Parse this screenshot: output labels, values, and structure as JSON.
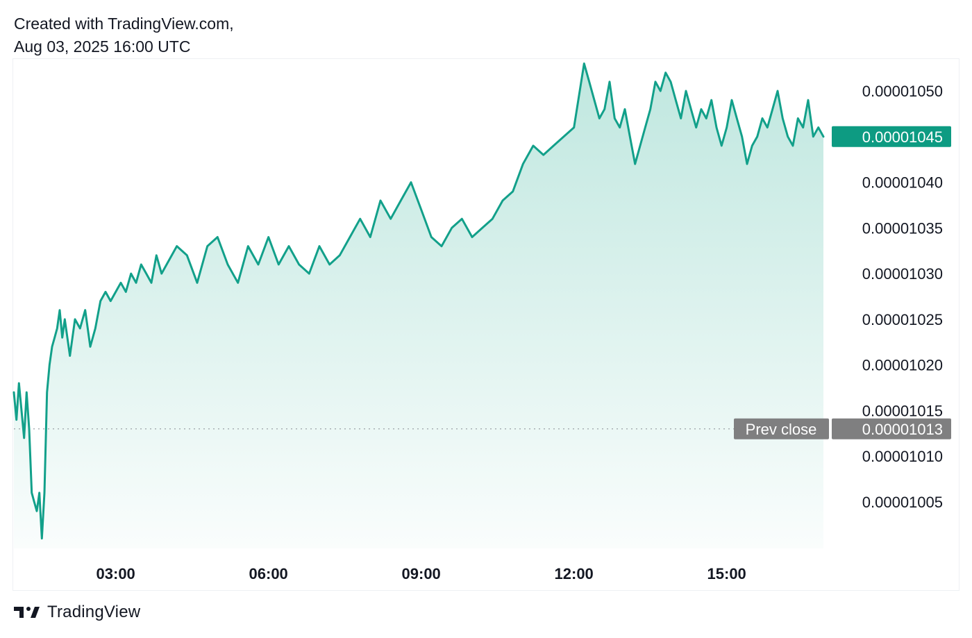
{
  "header": {
    "line1": "Created with TradingView.com,",
    "line2": "Aug 03, 2025 16:00 UTC"
  },
  "footer": {
    "brand": "TradingView",
    "logo_icon": "tradingview-logo-icon"
  },
  "colors": {
    "line": "#12a08a",
    "fill_top": "#bfe7df",
    "label_bg": "#0d9b82",
    "prev_close_bg": "#7f7f80",
    "text": "#131722",
    "dotted": "#9aa0a6"
  },
  "chart_data": {
    "type": "area",
    "xlabel": "",
    "ylabel": "",
    "x_ticks": [
      "03:00",
      "06:00",
      "09:00",
      "12:00",
      "15:00"
    ],
    "y_ticks": [
      "0.00001050",
      "0.00001045",
      "0.00001040",
      "0.00001035",
      "0.00001030",
      "0.00001025",
      "0.00001020",
      "0.00001015",
      "0.00001010",
      "0.00001005"
    ],
    "ylim": [
      1e-05,
      1.053e-05
    ],
    "last_price": 1.045e-05,
    "last_price_label": "0.00001045",
    "prev_close": 1.013e-05,
    "prev_close_value_label": "0.00001013",
    "prev_close_label": "Prev close",
    "x_unit": "hours after 00:00 UTC, Aug 03, 2025",
    "series": [
      {
        "x": [
          1.0,
          1.05,
          1.1,
          1.15,
          1.2,
          1.25,
          1.3,
          1.35,
          1.4,
          1.45,
          1.5,
          1.55,
          1.6,
          1.65,
          1.7,
          1.75,
          1.8,
          1.85,
          1.9,
          1.95,
          2.0,
          2.1,
          2.2,
          2.3,
          2.4,
          2.5,
          2.6,
          2.7,
          2.8,
          2.9,
          3.0,
          3.1,
          3.2,
          3.3,
          3.4,
          3.5,
          3.6,
          3.7,
          3.8,
          3.9,
          4.0,
          4.2,
          4.4,
          4.6,
          4.8,
          5.0,
          5.2,
          5.4,
          5.6,
          5.8,
          6.0,
          6.2,
          6.4,
          6.6,
          6.8,
          7.0,
          7.2,
          7.4,
          7.6,
          7.8,
          8.0,
          8.2,
          8.4,
          8.6,
          8.8,
          9.0,
          9.2,
          9.4,
          9.6,
          9.8,
          10.0,
          10.2,
          10.4,
          10.6,
          10.8,
          11.0,
          11.2,
          11.4,
          11.6,
          11.8,
          12.0,
          12.2,
          12.3,
          12.4,
          12.5,
          12.6,
          12.7,
          12.8,
          12.9,
          13.0,
          13.1,
          13.2,
          13.3,
          13.4,
          13.5,
          13.6,
          13.7,
          13.8,
          13.9,
          14.0,
          14.1,
          14.2,
          14.3,
          14.4,
          14.5,
          14.6,
          14.7,
          14.8,
          14.9,
          15.0,
          15.1,
          15.2,
          15.3,
          15.4,
          15.5,
          15.6,
          15.7,
          15.8,
          15.9,
          16.0,
          16.1,
          16.2,
          16.3,
          16.4,
          16.5,
          16.6,
          16.7,
          16.8,
          16.9
        ],
        "y": [
          1.017e-05,
          1.014e-05,
          1.018e-05,
          1.015e-05,
          1.012e-05,
          1.017e-05,
          1.013e-05,
          1.006e-05,
          1.005e-05,
          1.004e-05,
          1.006e-05,
          1.001e-05,
          1.006e-05,
          1.017e-05,
          1.02e-05,
          1.022e-05,
          1.023e-05,
          1.024e-05,
          1.026e-05,
          1.023e-05,
          1.025e-05,
          1.021e-05,
          1.025e-05,
          1.024e-05,
          1.026e-05,
          1.022e-05,
          1.024e-05,
          1.027e-05,
          1.028e-05,
          1.027e-05,
          1.028e-05,
          1.029e-05,
          1.028e-05,
          1.03e-05,
          1.029e-05,
          1.031e-05,
          1.03e-05,
          1.029e-05,
          1.032e-05,
          1.03e-05,
          1.031e-05,
          1.033e-05,
          1.032e-05,
          1.029e-05,
          1.033e-05,
          1.034e-05,
          1.031e-05,
          1.029e-05,
          1.033e-05,
          1.031e-05,
          1.034e-05,
          1.031e-05,
          1.033e-05,
          1.031e-05,
          1.03e-05,
          1.033e-05,
          1.031e-05,
          1.032e-05,
          1.034e-05,
          1.036e-05,
          1.034e-05,
          1.038e-05,
          1.036e-05,
          1.038e-05,
          1.04e-05,
          1.037e-05,
          1.034e-05,
          1.033e-05,
          1.035e-05,
          1.036e-05,
          1.034e-05,
          1.035e-05,
          1.036e-05,
          1.038e-05,
          1.039e-05,
          1.042e-05,
          1.044e-05,
          1.043e-05,
          1.044e-05,
          1.045e-05,
          1.046e-05,
          1.053e-05,
          1.051e-05,
          1.049e-05,
          1.047e-05,
          1.048e-05,
          1.051e-05,
          1.047e-05,
          1.046e-05,
          1.048e-05,
          1.045e-05,
          1.042e-05,
          1.044e-05,
          1.046e-05,
          1.048e-05,
          1.051e-05,
          1.05e-05,
          1.052e-05,
          1.051e-05,
          1.049e-05,
          1.047e-05,
          1.05e-05,
          1.048e-05,
          1.046e-05,
          1.048e-05,
          1.047e-05,
          1.049e-05,
          1.046e-05,
          1.044e-05,
          1.046e-05,
          1.049e-05,
          1.047e-05,
          1.045e-05,
          1.042e-05,
          1.044e-05,
          1.045e-05,
          1.047e-05,
          1.046e-05,
          1.048e-05,
          1.05e-05,
          1.047e-05,
          1.045e-05,
          1.044e-05,
          1.047e-05,
          1.046e-05,
          1.049e-05,
          1.045e-05,
          1.046e-05,
          1.045e-05
        ]
      }
    ]
  }
}
